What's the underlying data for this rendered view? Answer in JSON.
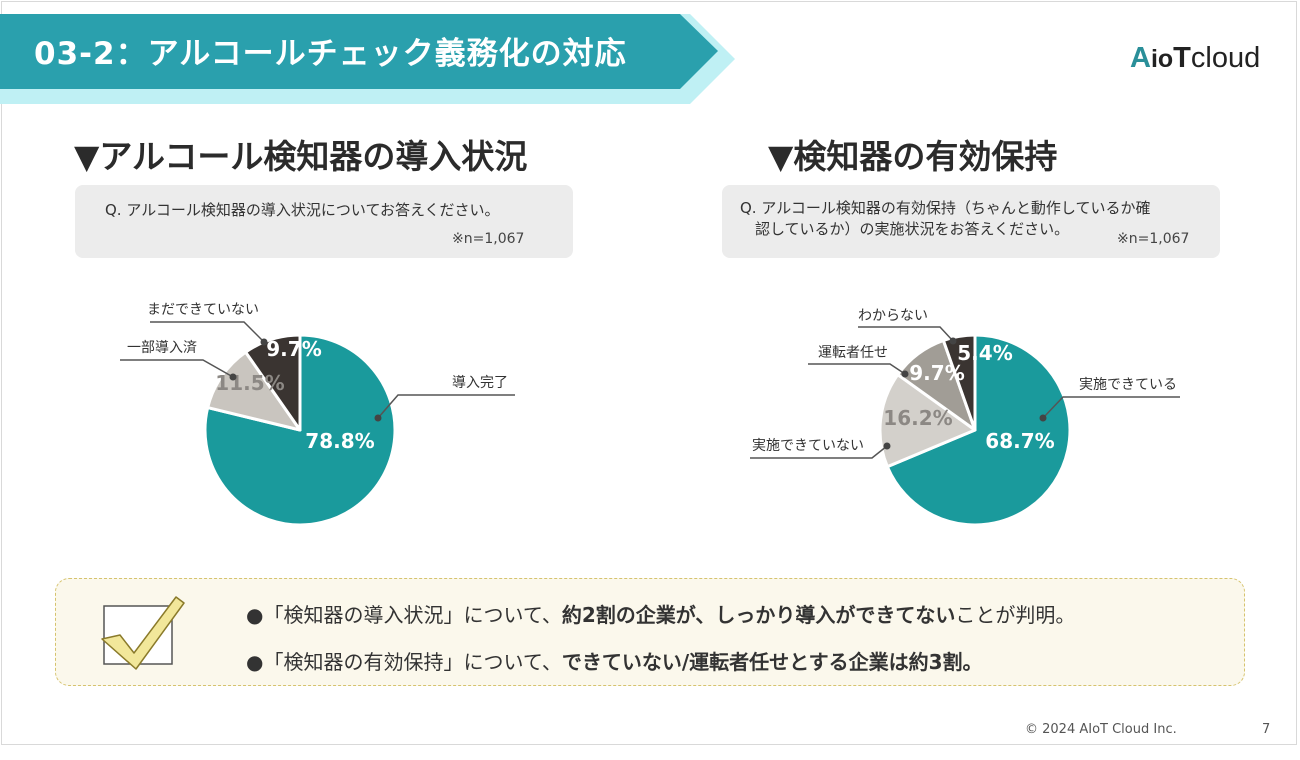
{
  "header": {
    "title": "03-2：アルコールチェック義務化の対応",
    "logo": {
      "a": "A",
      "io": "io",
      "t": "T",
      "rest": "cloud"
    }
  },
  "left": {
    "section_title": "▼アルコール検知器の導入状況",
    "question": "Q. アルコール検知器の導入状況についてお答えください。",
    "n_label": "※n=1,067"
  },
  "right": {
    "section_title": "▼検知器の有効保持",
    "question": "Q. アルコール検知器の有効保持（ちゃんと動作しているか確\n　認しているか）の実施状況をお答えください。",
    "n_label": "※n=1,067"
  },
  "chart_data": [
    {
      "type": "pie",
      "title": "",
      "slices": [
        {
          "label": "導入完了",
          "value": 78.8,
          "value_label": "78.8%",
          "color": "#1a9a9c"
        },
        {
          "label": "一部導入済",
          "value": 11.5,
          "value_label": "11.5%",
          "color": "#c9c5bf"
        },
        {
          "label": "まだできていない",
          "value": 9.7,
          "value_label": "9.7%",
          "color": "#3a3431"
        }
      ]
    },
    {
      "type": "pie",
      "title": "",
      "slices": [
        {
          "label": "実施できている",
          "value": 68.7,
          "value_label": "68.7%",
          "color": "#1a9a9c"
        },
        {
          "label": "実施できていない",
          "value": 16.2,
          "value_label": "16.2%",
          "color": "#d3d0cb"
        },
        {
          "label": "運転者任せ",
          "value": 9.7,
          "value_label": "9.7%",
          "color": "#a19d96"
        },
        {
          "label": "わからない",
          "value": 5.4,
          "value_label": "5.4%",
          "color": "#3a3431"
        }
      ]
    }
  ],
  "summary": {
    "line1": {
      "bullet": "●",
      "part1": "「検知器の導入状況」について、",
      "bold": "約2割の企業が、しっかり導入ができてない",
      "part2": "ことが判明。"
    },
    "line2": {
      "bullet": "●",
      "part1": "「検知器の有効保持」について、",
      "bold": "できていない/運転者任せとする企業は約3割。"
    }
  },
  "footer": {
    "copyright": "© 2024 AIoT Cloud Inc.",
    "page": "7"
  }
}
